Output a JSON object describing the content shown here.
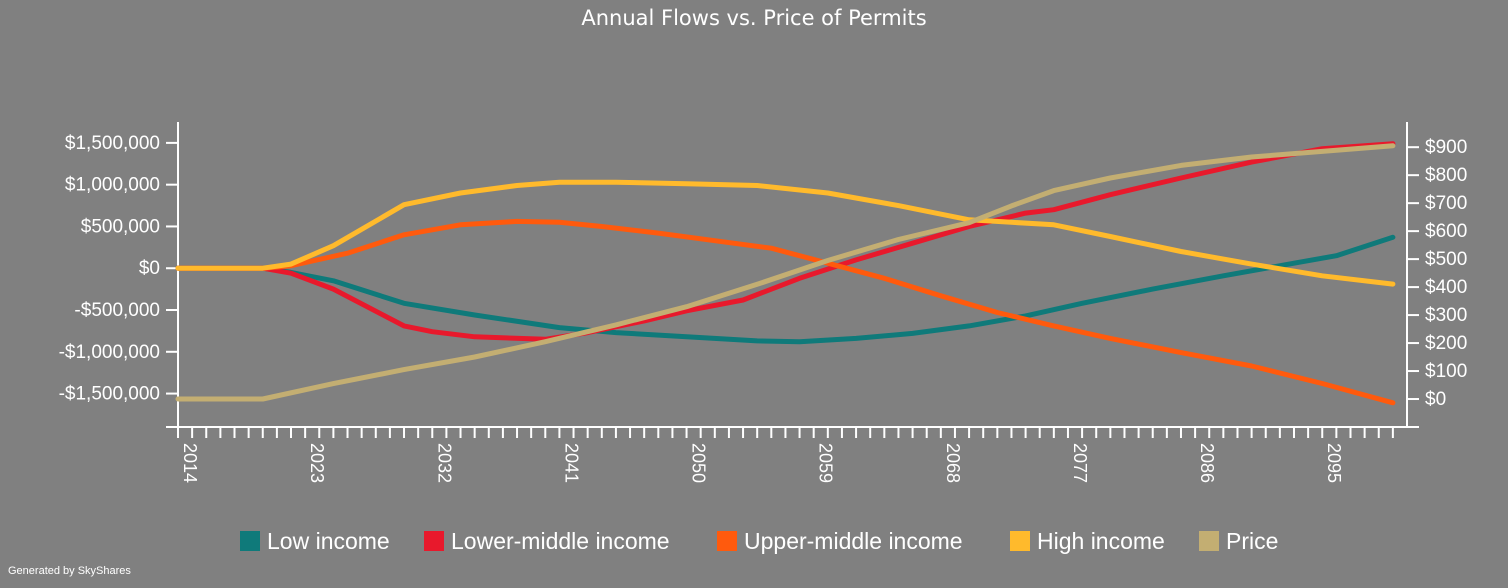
{
  "footer": {
    "credit": "Generated by SkyShares"
  },
  "chart_data": {
    "type": "line",
    "title": "Annual Flows vs. Price of Permits",
    "left_axis": {
      "ylim": [
        -1900000,
        1750000
      ],
      "ticks": [
        -1500000,
        -1000000,
        -500000,
        0,
        500000,
        1000000,
        1500000
      ],
      "tick_labels": [
        "-$1,500,000",
        "-$1,000,000",
        "-$500,000",
        "$0",
        "$500,000",
        "$1,000,000",
        "$1,500,000"
      ]
    },
    "right_axis": {
      "ylim": [
        -100,
        990
      ],
      "ticks": [
        0,
        100,
        200,
        300,
        400,
        500,
        600,
        700,
        800,
        900
      ],
      "tick_labels": [
        "$0",
        "$100",
        "$200",
        "$300",
        "$400",
        "$500",
        "$600",
        "$700",
        "$800",
        "$900"
      ]
    },
    "x_axis": {
      "xlim": [
        2014,
        2101
      ],
      "minor_tick_step": 1,
      "label_ticks": [
        2014,
        2023,
        2032,
        2041,
        2050,
        2059,
        2068,
        2077,
        2086,
        2095
      ]
    },
    "legend_position": "bottom",
    "series": [
      {
        "name": "Low income",
        "color": "#0f7a7a",
        "axis": "left",
        "x": [
          2014,
          2020,
          2022,
          2025,
          2030,
          2035,
          2041,
          2045,
          2050,
          2055,
          2058,
          2062,
          2066,
          2070,
          2074,
          2078,
          2083,
          2088,
          2093,
          2096,
          2100
        ],
        "y": [
          0,
          0,
          -50000,
          -150000,
          -420000,
          -560000,
          -710000,
          -770000,
          -820000,
          -870000,
          -880000,
          -840000,
          -780000,
          -690000,
          -570000,
          -420000,
          -250000,
          -90000,
          60000,
          150000,
          370000
        ]
      },
      {
        "name": "Lower-middle income",
        "color": "#e8192c",
        "axis": "left",
        "x": [
          2014,
          2020,
          2022,
          2025,
          2030,
          2032,
          2035,
          2040,
          2043,
          2047,
          2050,
          2054,
          2058,
          2062,
          2066,
          2070,
          2074,
          2076,
          2080,
          2085,
          2090,
          2095,
          2100
        ],
        "y": [
          0,
          0,
          -60000,
          -250000,
          -690000,
          -760000,
          -820000,
          -850000,
          -770000,
          -630000,
          -510000,
          -380000,
          -120000,
          100000,
          300000,
          500000,
          660000,
          700000,
          880000,
          1080000,
          1270000,
          1430000,
          1490000
        ]
      },
      {
        "name": "Upper-middle income",
        "color": "#ff5a0d",
        "axis": "left",
        "x": [
          2014,
          2020,
          2022,
          2026,
          2030,
          2034,
          2038,
          2041,
          2044,
          2048,
          2052,
          2056,
          2060,
          2064,
          2068,
          2072,
          2076,
          2080,
          2085,
          2090,
          2095,
          2100
        ],
        "y": [
          0,
          0,
          30000,
          180000,
          400000,
          520000,
          560000,
          550000,
          500000,
          420000,
          330000,
          240000,
          60000,
          -120000,
          -330000,
          -530000,
          -690000,
          -840000,
          -1010000,
          -1170000,
          -1380000,
          -1610000
        ]
      },
      {
        "name": "High income",
        "color": "#ffba2c",
        "axis": "left",
        "x": [
          2014,
          2020,
          2022,
          2025,
          2030,
          2034,
          2038,
          2041,
          2045,
          2050,
          2055,
          2060,
          2065,
          2070,
          2073,
          2076,
          2080,
          2085,
          2090,
          2095,
          2100
        ],
        "y": [
          0,
          0,
          50000,
          270000,
          760000,
          900000,
          990000,
          1030000,
          1030000,
          1010000,
          990000,
          900000,
          750000,
          580000,
          550000,
          520000,
          380000,
          200000,
          50000,
          -90000,
          -190000
        ]
      },
      {
        "name": "Price",
        "color": "#c3ae72",
        "axis": "right",
        "x": [
          2014,
          2020,
          2025,
          2030,
          2035,
          2040,
          2045,
          2050,
          2055,
          2060,
          2065,
          2070,
          2073,
          2076,
          2080,
          2085,
          2090,
          2095,
          2100
        ],
        "y": [
          0,
          0,
          55,
          105,
          150,
          205,
          265,
          330,
          410,
          495,
          570,
          630,
          690,
          745,
          790,
          835,
          865,
          885,
          905
        ]
      }
    ]
  }
}
